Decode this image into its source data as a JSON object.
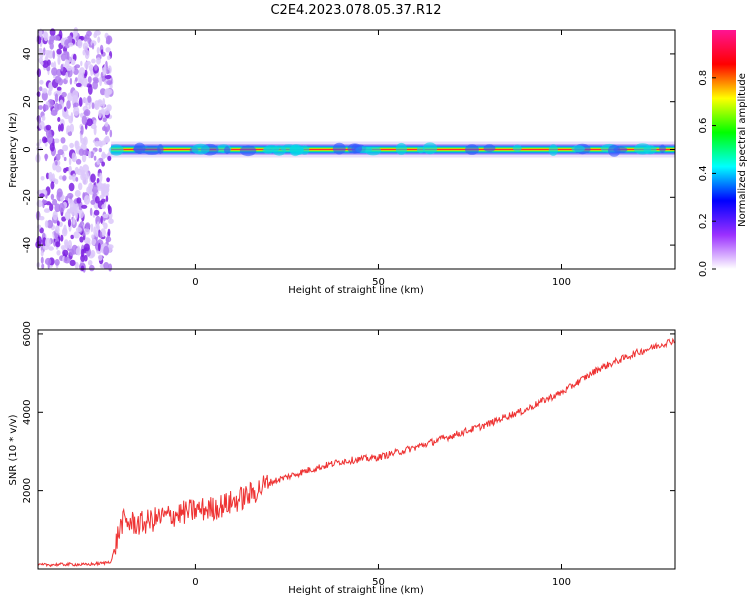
{
  "title": "C2E4.2023.078.05.37.R12",
  "chart_data": [
    {
      "type": "heatmap",
      "xlabel": "Height of straight line (km)",
      "ylabel": "Frequency (Hz)",
      "xlim": [
        -43,
        131
      ],
      "ylim": [
        -50,
        50
      ],
      "xticks": [
        0,
        50,
        100
      ],
      "yticks": [
        -40,
        -20,
        0,
        20,
        40
      ],
      "colorbar": {
        "label": "Normalized spectral amplitude",
        "range": [
          0.0,
          1.0
        ],
        "ticks": [
          0.0,
          0.2,
          0.4,
          0.6,
          0.8
        ],
        "colors": [
          "#ffffff",
          "#9b30ff",
          "#0000ff",
          "#00ffff",
          "#00ff00",
          "#ffff00",
          "#ff0000",
          "#ff1493"
        ]
      },
      "noise_region": [
        -43,
        -23
      ],
      "ridge_frequency_hz": 0
    },
    {
      "type": "line",
      "xlabel": "Height of straight line (km)",
      "ylabel": "SNR (10 * v/v)",
      "xlim": [
        -43,
        131
      ],
      "ylim": [
        0,
        6100
      ],
      "xticks": [
        0,
        50,
        100
      ],
      "yticks": [
        2000,
        4000,
        6000
      ],
      "color": "#ee3333",
      "series": [
        {
          "x": [
            -43,
            -35,
            -30,
            -25,
            -23,
            -21,
            -20,
            -15,
            -10,
            -5,
            0,
            5,
            10,
            15,
            20,
            30,
            40,
            50,
            60,
            70,
            80,
            85,
            90,
            95,
            100,
            105,
            110,
            120,
            131
          ],
          "values": [
            100,
            120,
            110,
            150,
            200,
            900,
            1200,
            1150,
            1300,
            1400,
            1500,
            1550,
            1700,
            1900,
            2200,
            2500,
            2750,
            2850,
            3100,
            3400,
            3700,
            3900,
            4050,
            4300,
            4500,
            4800,
            5100,
            5500,
            5850
          ]
        }
      ]
    }
  ]
}
